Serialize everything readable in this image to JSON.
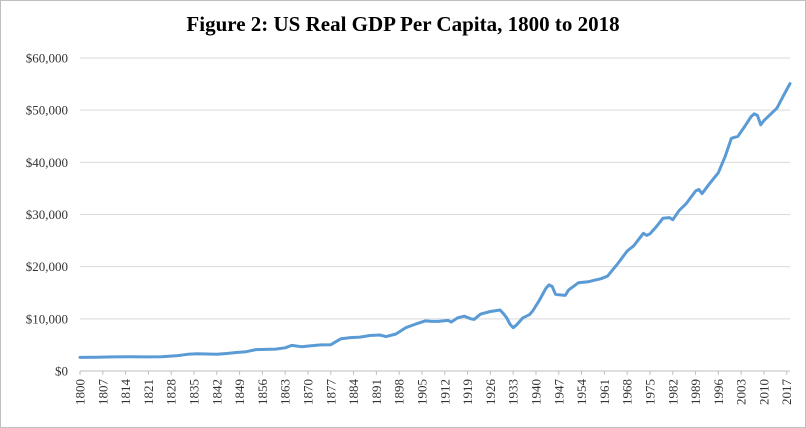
{
  "chart_data": {
    "type": "line",
    "title": "Figure 2: US Real GDP Per Capita, 1800 to 2018",
    "xlabel": "",
    "ylabel": "",
    "ylim": [
      0,
      60000
    ],
    "y_ticks": [
      0,
      10000,
      20000,
      30000,
      40000,
      50000,
      60000
    ],
    "y_tick_labels": [
      "$0",
      "$10,000",
      "$20,000",
      "$30,000",
      "$40,000",
      "$50,000",
      "$60,000"
    ],
    "xlim": [
      1800,
      2018
    ],
    "x_tick_labels": [
      "1800",
      "1807",
      "1814",
      "1821",
      "1828",
      "1835",
      "1842",
      "1849",
      "1856",
      "1863",
      "1870",
      "1877",
      "1884",
      "1891",
      "1898",
      "1905",
      "1912",
      "1919",
      "1926",
      "1933",
      "1940",
      "1947",
      "1954",
      "1961",
      "1968",
      "1975",
      "1982",
      "1989",
      "1996",
      "2003",
      "2010",
      "2017"
    ],
    "grid": true,
    "legend": "none",
    "line_color": "#5b9bd5",
    "series": [
      {
        "x": [
          1800,
          1805,
          1810,
          1815,
          1820,
          1825,
          1830,
          1833,
          1836,
          1839,
          1842,
          1845,
          1848,
          1851,
          1854,
          1857,
          1860,
          1863,
          1865,
          1868,
          1871,
          1874,
          1877,
          1880,
          1883,
          1886,
          1889,
          1892,
          1894,
          1897,
          1900,
          1903,
          1906,
          1908,
          1910,
          1913,
          1914,
          1916,
          1918,
          1920,
          1921,
          1923,
          1926,
          1929,
          1930,
          1931,
          1932,
          1933,
          1934,
          1936,
          1938,
          1939,
          1941,
          1943,
          1944,
          1945,
          1946,
          1947,
          1949,
          1950,
          1953,
          1956,
          1958,
          1960,
          1962,
          1965,
          1968,
          1970,
          1973,
          1974,
          1975,
          1977,
          1979,
          1981,
          1982,
          1984,
          1986,
          1989,
          1990,
          1991,
          1993,
          1996,
          1998,
          2000,
          2001,
          2002,
          2004,
          2006,
          2007,
          2008,
          2009,
          2010,
          2012,
          2014,
          2016,
          2018
        ],
        "values": [
          2600,
          2650,
          2700,
          2750,
          2700,
          2750,
          2950,
          3200,
          3300,
          3250,
          3200,
          3350,
          3550,
          3700,
          4100,
          4150,
          4200,
          4450,
          4900,
          4650,
          4850,
          5000,
          5050,
          6150,
          6400,
          6500,
          6800,
          6900,
          6600,
          7100,
          8300,
          9000,
          9600,
          9500,
          9500,
          9700,
          9400,
          10200,
          10500,
          10000,
          9900,
          10900,
          11400,
          11700,
          11000,
          10200,
          9000,
          8300,
          8800,
          10200,
          10800,
          11500,
          13500,
          15800,
          16500,
          16200,
          14700,
          14600,
          14500,
          15500,
          16900,
          17100,
          17400,
          17700,
          18200,
          20500,
          23000,
          24000,
          26400,
          26000,
          26300,
          27700,
          29300,
          29400,
          29000,
          30800,
          32000,
          34500,
          34800,
          34000,
          35700,
          38000,
          41000,
          44600,
          44800,
          45000,
          46800,
          48700,
          49300,
          49000,
          47200,
          48000,
          49200,
          50400,
          52800,
          55100
        ]
      }
    ]
  }
}
